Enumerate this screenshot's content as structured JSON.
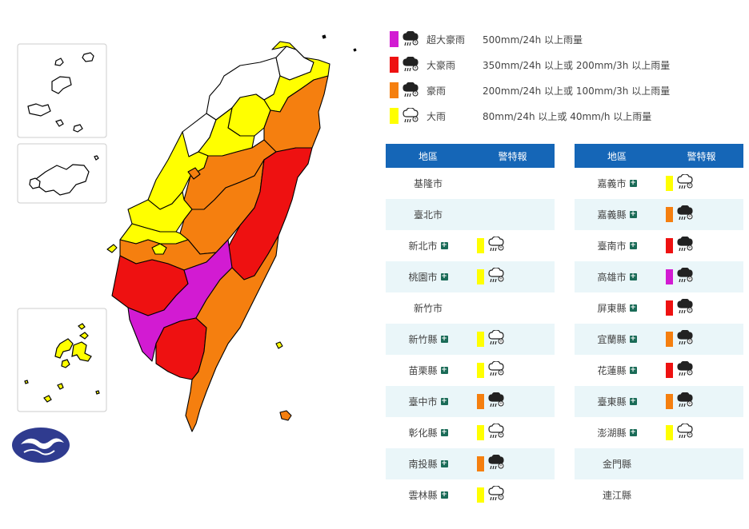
{
  "colors": {
    "extreme_torrential": "#d21bd2",
    "torrential": "#ee1111",
    "extremely_heavy": "#f57f0f",
    "heavy": "#ffff00",
    "header_blue": "#1566b7",
    "row_alt": "#eaf6f9",
    "plus_green": "#1a6b57"
  },
  "legend": [
    {
      "level": "extreme_torrential",
      "name": "超大豪雨",
      "desc": "500mm/24h 以上雨量",
      "icon": "heavy-rain-dark-icon"
    },
    {
      "level": "torrential",
      "name": "大豪雨",
      "desc": "350mm/24h 以上或 200mm/3h 以上雨量",
      "icon": "heavy-rain-dark-icon"
    },
    {
      "level": "extremely_heavy",
      "name": "豪雨",
      "desc": "200mm/24h 以上或 100mm/3h 以上雨量",
      "icon": "heavy-rain-dark-icon"
    },
    {
      "level": "heavy",
      "name": "大雨",
      "desc": "80mm/24h 以上或 40mm/h 以上雨量",
      "icon": "rain-outline-icon"
    }
  ],
  "table_left": {
    "header": {
      "region": "地區",
      "warning": "警特報"
    },
    "rows": [
      {
        "region": "基隆市",
        "expand": false,
        "level": null
      },
      {
        "region": "臺北市",
        "expand": false,
        "level": null
      },
      {
        "region": "新北市",
        "expand": true,
        "level": "heavy"
      },
      {
        "region": "桃園市",
        "expand": true,
        "level": "heavy"
      },
      {
        "region": "新竹市",
        "expand": false,
        "level": null
      },
      {
        "region": "新竹縣",
        "expand": true,
        "level": "heavy"
      },
      {
        "region": "苗栗縣",
        "expand": true,
        "level": "heavy"
      },
      {
        "region": "臺中市",
        "expand": true,
        "level": "extremely_heavy"
      },
      {
        "region": "彰化縣",
        "expand": true,
        "level": "heavy"
      },
      {
        "region": "南投縣",
        "expand": true,
        "level": "extremely_heavy"
      },
      {
        "region": "雲林縣",
        "expand": true,
        "level": "heavy"
      }
    ]
  },
  "table_right": {
    "header": {
      "region": "地區",
      "warning": "警特報"
    },
    "rows": [
      {
        "region": "嘉義市",
        "expand": true,
        "level": "heavy"
      },
      {
        "region": "嘉義縣",
        "expand": true,
        "level": "extremely_heavy"
      },
      {
        "region": "臺南市",
        "expand": true,
        "level": "torrential"
      },
      {
        "region": "高雄市",
        "expand": true,
        "level": "extreme_torrential"
      },
      {
        "region": "屏東縣",
        "expand": true,
        "level": "torrential"
      },
      {
        "region": "宜蘭縣",
        "expand": true,
        "level": "extremely_heavy"
      },
      {
        "region": "花蓮縣",
        "expand": true,
        "level": "torrential"
      },
      {
        "region": "臺東縣",
        "expand": true,
        "level": "extremely_heavy"
      },
      {
        "region": "澎湖縣",
        "expand": true,
        "level": "heavy"
      },
      {
        "region": "金門縣",
        "expand": false,
        "level": null
      },
      {
        "region": "連江縣",
        "expand": false,
        "level": null
      }
    ]
  },
  "map_regions": {
    "keelung": "none",
    "taipei": "none",
    "new_taipei": "heavy",
    "taoyuan": "heavy",
    "hsinchu_city": "none",
    "hsinchu_county": "heavy",
    "miaoli": "heavy",
    "taichung": "extremely_heavy",
    "changhua": "heavy",
    "nantou": "extremely_heavy",
    "yunlin": "heavy",
    "chiayi_city": "heavy",
    "chiayi_county": "extremely_heavy",
    "tainan": "torrential",
    "kaohsiung": "extreme_torrential",
    "pingtung": "torrential",
    "yilan": "extremely_heavy",
    "hualien": "torrential",
    "taitung": "extremely_heavy",
    "penghu": "heavy",
    "kinmen": "none",
    "lienchiang": "none"
  }
}
